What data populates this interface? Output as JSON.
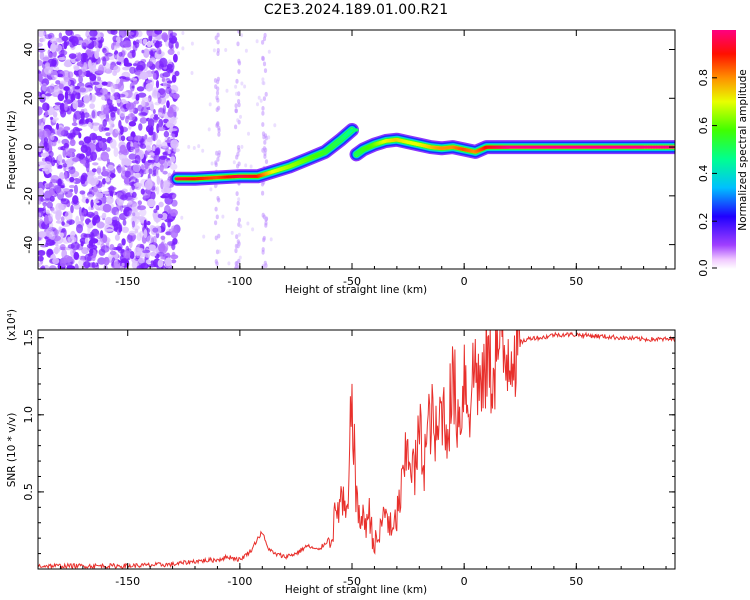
{
  "chart_data": [
    {
      "type": "heatmap",
      "title": "C2E3.2024.189.01.00.R21",
      "xlabel": "Height of straight line (km)",
      "ylabel": "Frequency (Hz)",
      "xlim": [
        -190,
        94
      ],
      "ylim": [
        -50,
        48
      ],
      "x_ticks": [
        -150,
        -100,
        -50,
        0,
        50
      ],
      "y_ticks": [
        -40,
        -20,
        0,
        20,
        40
      ],
      "colorbar": {
        "label": "Normalized spectral amplitude",
        "range": [
          0,
          1
        ],
        "ticks": [
          0.0,
          0.2,
          0.4,
          0.6,
          0.8
        ],
        "tick_labels": [
          "0.0",
          "0.2",
          "0.4",
          "0.6",
          "0.8"
        ],
        "colors": [
          "#ffffff",
          "#ffc8ff",
          "#9000ff",
          "#0000ff",
          "#00e0ff",
          "#00ff60",
          "#e8ff00",
          "#ff8000",
          "#ff0000",
          "#ff0080"
        ]
      },
      "noise_region_x": [
        -190,
        -128
      ],
      "noise_color": "#7a1fff",
      "ridge": {
        "x": [
          -128,
          -120,
          -110,
          -100,
          -92,
          -85,
          -78,
          -70,
          -62,
          -55,
          -50,
          -48,
          -45,
          -40,
          -35,
          -30,
          -25,
          -20,
          -15,
          -10,
          -5,
          0,
          5,
          10,
          15,
          20,
          30,
          40,
          50,
          60,
          70,
          80,
          94
        ],
        "y": [
          -13,
          -13,
          -12.5,
          -12,
          -12,
          -10,
          -8,
          -5,
          -2,
          3,
          7,
          -3,
          -1,
          1,
          2.5,
          3,
          2,
          1,
          0,
          -0.5,
          0,
          -1,
          -2,
          0,
          0,
          0,
          0,
          0,
          0,
          0,
          0,
          0,
          0
        ],
        "amplitude": [
          0.95,
          0.9,
          0.85,
          0.95,
          0.9,
          0.7,
          0.65,
          0.6,
          0.55,
          0.5,
          0.45,
          0.5,
          0.55,
          0.6,
          0.7,
          0.75,
          0.7,
          0.7,
          0.75,
          0.8,
          0.8,
          0.85,
          0.8,
          0.9,
          0.95,
          1.0,
          1.0,
          1.0,
          1.0,
          1.0,
          1.0,
          1.0,
          1.0
        ]
      }
    },
    {
      "type": "line",
      "xlabel": "Height of straight line (km)",
      "ylabel": "SNR (10 * v/v)",
      "yscale_label": "(x10⁴)",
      "xlim": [
        -190,
        94
      ],
      "ylim": [
        0,
        1.55
      ],
      "x_ticks": [
        -150,
        -100,
        -50,
        0,
        50
      ],
      "y_ticks": [
        0.5,
        1.0,
        1.5
      ],
      "y_tick_labels": [
        "0.5",
        "1.0",
        "1.5"
      ],
      "color": "#e8302c",
      "series": [
        {
          "x": [
            -190,
            -150,
            -130,
            -120,
            -110,
            -105,
            -100,
            -95,
            -92,
            -90,
            -88,
            -85,
            -80,
            -75,
            -70,
            -65,
            -60,
            -57,
            -55,
            -52,
            -50,
            -48,
            -45,
            -42,
            -40,
            -38,
            -35,
            -32,
            -30,
            -28,
            -25,
            -22,
            -20,
            -18,
            -15,
            -12,
            -10,
            -8,
            -5,
            -2,
            0,
            2,
            5,
            8,
            10,
            12,
            15,
            18,
            20,
            25,
            30,
            35,
            40,
            50,
            60,
            70,
            80,
            94
          ],
          "y": [
            0.02,
            0.02,
            0.03,
            0.05,
            0.06,
            0.08,
            0.06,
            0.12,
            0.2,
            0.24,
            0.15,
            0.1,
            0.08,
            0.1,
            0.15,
            0.12,
            0.2,
            0.35,
            0.45,
            0.3,
            1.18,
            0.4,
            0.3,
            0.35,
            0.15,
            0.2,
            0.4,
            0.2,
            0.35,
            0.5,
            0.8,
            0.6,
            0.9,
            0.7,
            1.0,
            0.8,
            1.1,
            0.9,
            1.2,
            0.95,
            1.3,
            1.05,
            1.35,
            1.1,
            1.4,
            1.25,
            1.45,
            1.35,
            1.45,
            1.47,
            1.5,
            1.5,
            1.52,
            1.52,
            1.51,
            1.5,
            1.49,
            1.49
          ]
        }
      ]
    }
  ]
}
